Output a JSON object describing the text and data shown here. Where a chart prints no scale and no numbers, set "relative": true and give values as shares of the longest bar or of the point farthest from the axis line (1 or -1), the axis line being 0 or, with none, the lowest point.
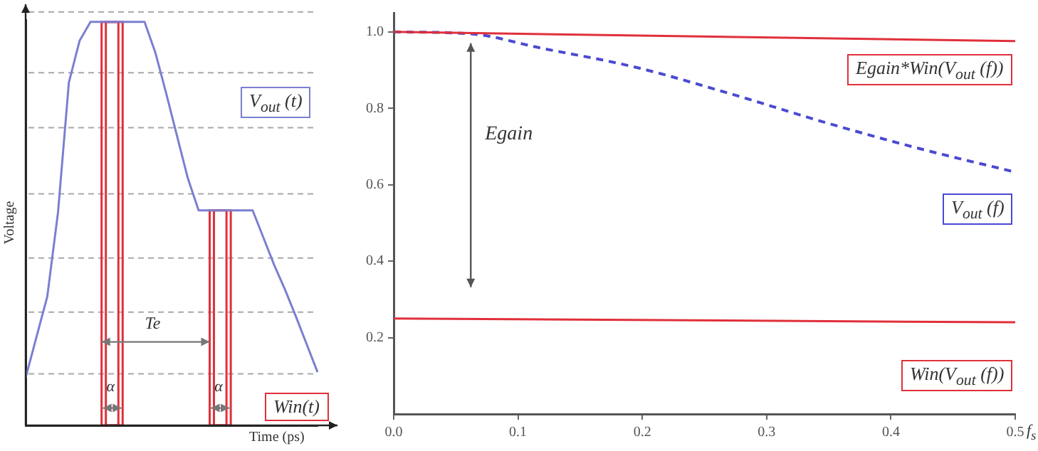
{
  "chart_data": [
    {
      "type": "line",
      "relative": true,
      "xlabel": "Time (ps)",
      "ylabel": "Voltage",
      "categories": [
        null,
        null,
        null,
        null,
        null,
        null,
        null,
        null,
        null,
        null,
        null,
        null,
        null,
        null,
        null,
        null,
        null,
        null,
        null,
        null,
        null,
        null,
        null,
        null,
        null,
        null,
        null,
        null
      ],
      "series": [
        {
          "name": "V$_{out}$ (t)",
          "color": "#7b7fd0",
          "values": [
            0.118,
            0.219,
            0.319,
            0.529,
            0.85,
            0.954,
            1,
            1,
            1,
            1,
            1,
            1,
            0.924,
            0.823,
            0.718,
            0.613,
            0.533,
            0.533,
            0.533,
            0.533,
            0.533,
            0.533,
            0.465,
            0.397,
            0.336,
            0.27,
            0.201,
            0.132
          ]
        }
      ],
      "annotations": [
        "Te",
        "α",
        "α",
        "Win(t)"
      ]
    },
    {
      "type": "line",
      "xlim": [
        0,
        0.5
      ],
      "xlabel": "f$_{s}$",
      "xticks": [
        {
          "value": 0,
          "label": "0.0"
        },
        0.1,
        0.2,
        0.3,
        0.4,
        0.5
      ],
      "ylim": [
        0,
        1.05
      ],
      "yticks": [
        0.2,
        0.4,
        0.6,
        0.8,
        {
          "value": 1,
          "label": "1.0"
        }
      ],
      "series": [
        {
          "name": "Egain*Win(V$_{out}$ (f))",
          "color": "#e0303a",
          "x": [
            0,
            0.5
          ],
          "values": [
            1.0,
            0.976
          ]
        },
        {
          "name": "V$_{out}$ (f)",
          "color": "#4a4ad0",
          "line_style": "dashed",
          "x": [
            0,
            0.062,
            0.118,
            0.194,
            0.269,
            0.344,
            0.419,
            0.5
          ],
          "values": [
            1.0,
            0.995,
            0.958,
            0.908,
            0.84,
            0.766,
            0.698,
            0.633
          ]
        },
        {
          "name": "Win(V$_{out}$ (f))",
          "color": "#e0303a",
          "x": [
            0,
            0.5
          ],
          "values": [
            0.25,
            0.24
          ]
        }
      ],
      "annotations": [
        "Egain"
      ]
    }
  ]
}
